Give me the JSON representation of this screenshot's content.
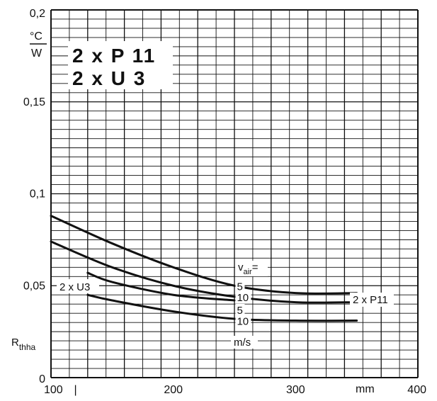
{
  "chart_data": {
    "type": "line",
    "heading_lines": [
      "2 x P 11",
      "2 x U 3"
    ],
    "ylabel_main": "R",
    "ylabel_sub": "thha",
    "yunit_top": "°C",
    "yunit_bottom": "W",
    "xunit": "mm",
    "x_ticks": [
      "100",
      "200",
      "300",
      "400"
    ],
    "x_extra_mark": "|",
    "y_ticks": [
      "0",
      "0,05",
      "0,1",
      "0,15",
      "0,2"
    ],
    "xlim": [
      100,
      400
    ],
    "ylim": [
      0,
      0.2
    ],
    "grid": true,
    "air_label_main": "v",
    "air_label_sub": "air",
    "air_label_eq": "=",
    "air_unit": "m/s",
    "group_labels": {
      "p11": "2 x P11",
      "u3": "2 x U3"
    },
    "series": [
      {
        "group": "p11",
        "label": "5",
        "x": [
          100,
          150,
          200,
          250,
          300,
          350
        ],
        "y": [
          0.088,
          0.073,
          0.06,
          0.05,
          0.046,
          0.046
        ]
      },
      {
        "group": "p11",
        "label": "10",
        "x": [
          100,
          150,
          200,
          250,
          300,
          350
        ],
        "y": [
          0.074,
          0.06,
          0.05,
          0.044,
          0.041,
          0.041
        ]
      },
      {
        "group": "u3",
        "label": "5",
        "x": [
          130,
          150,
          200,
          250
        ],
        "y": [
          0.057,
          0.052,
          0.045,
          0.042
        ]
      },
      {
        "group": "u3",
        "label": "10",
        "x": [
          130,
          150,
          200,
          250,
          300,
          350
        ],
        "y": [
          0.045,
          0.042,
          0.036,
          0.032,
          0.031,
          0.031
        ]
      }
    ]
  }
}
